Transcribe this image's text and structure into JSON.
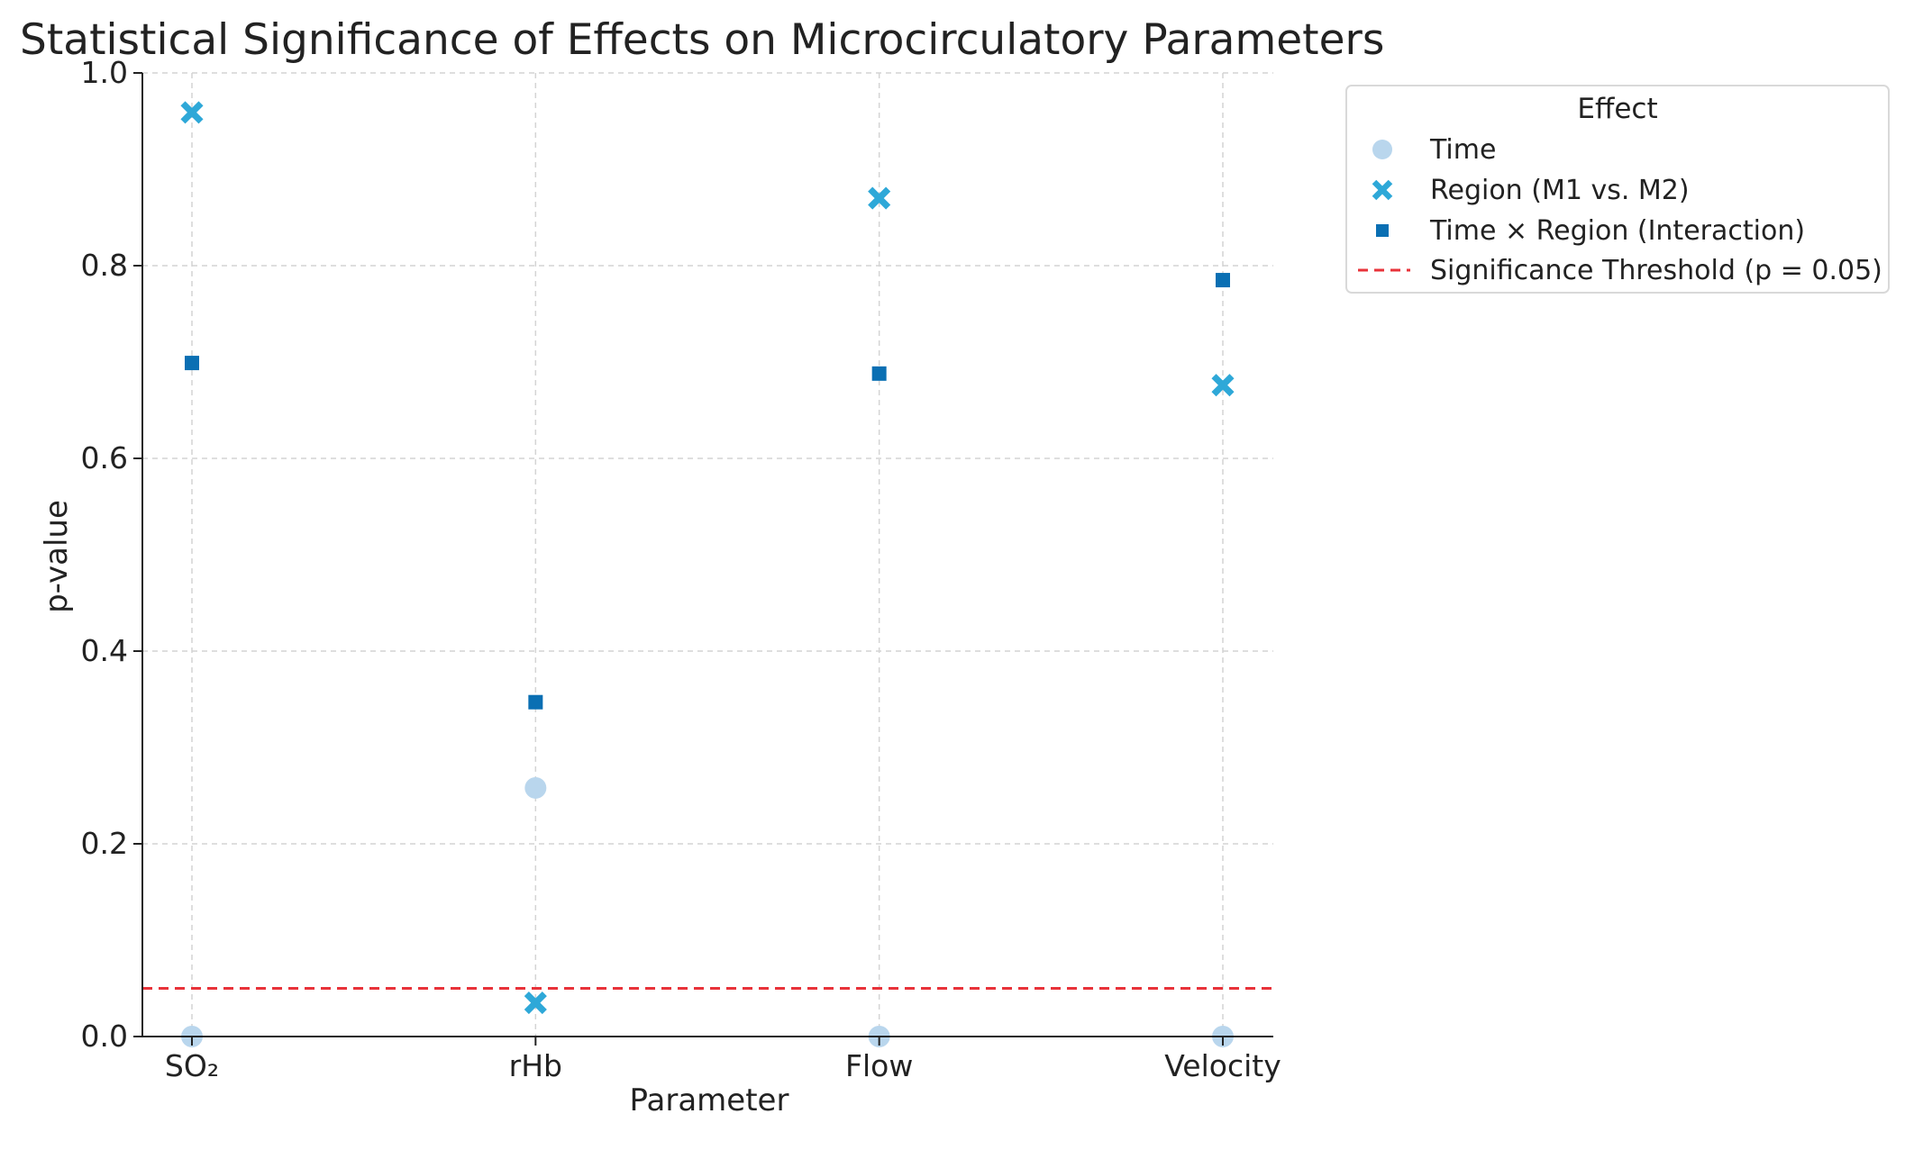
{
  "chart_data": {
    "type": "scatter",
    "title": "Statistical Significance of Effects on Microcirculatory Parameters",
    "xlabel": "Parameter",
    "ylabel": "p-value",
    "categories": [
      "SO₂",
      "rHb",
      "Flow",
      "Velocity"
    ],
    "ylim": [
      0,
      1.0
    ],
    "yticks": [
      "0.0",
      "0.2",
      "0.4",
      "0.6",
      "0.8",
      "1.0"
    ],
    "grid": true,
    "legend": {
      "title": "Effect",
      "position": "outside-top-right"
    },
    "series": [
      {
        "name": "Time",
        "marker": "circle",
        "color": "#b9d6ed",
        "values": [
          0.0,
          0.258,
          0.0,
          0.0
        ]
      },
      {
        "name": "Region (M1 vs. M2)",
        "marker": "x",
        "color": "#2ea8d8",
        "values": [
          0.959,
          0.035,
          0.87,
          0.676
        ]
      },
      {
        "name": "Time × Region (Interaction)",
        "marker": "square",
        "color": "#0a6fb3",
        "values": [
          0.699,
          0.347,
          0.688,
          0.785
        ]
      }
    ],
    "threshold": {
      "label": "Significance Threshold (p = 0.05)",
      "value": 0.05,
      "color": "#e8333a"
    }
  }
}
